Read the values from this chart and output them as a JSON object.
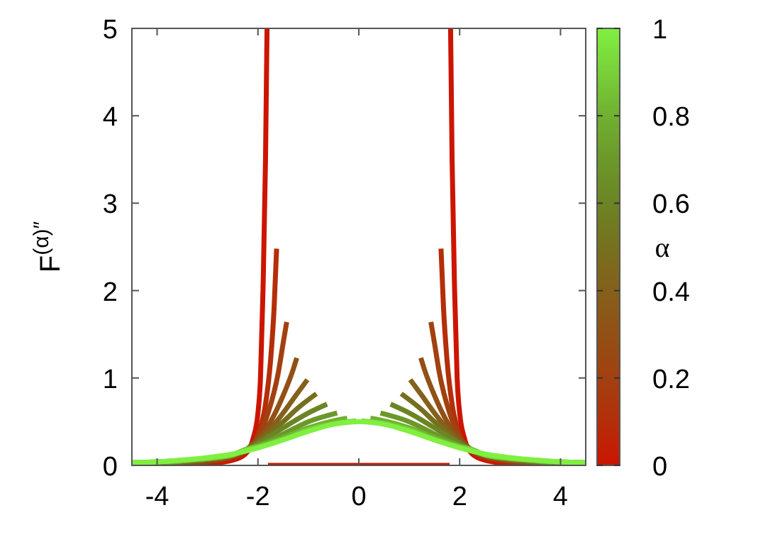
{
  "chart_data": {
    "type": "line",
    "ylabel": "F$^{(α)″}$",
    "clabel": "α",
    "xlim": [
      -4.5,
      4.5
    ],
    "ylim": [
      0,
      5
    ],
    "xticks": [
      -4,
      -2,
      0,
      2,
      4
    ],
    "yticks": [
      0,
      1,
      2,
      3,
      4,
      5
    ],
    "clim": [
      0,
      1
    ],
    "cticks": [
      0,
      0.2,
      0.4,
      0.6,
      0.8,
      1
    ],
    "grid": false,
    "line_style": "solid",
    "marker": "none",
    "series": [
      {
        "color": "#cc1500",
        "x": [
          -4.5,
          -4,
          -3.5,
          -3,
          -2.5,
          -2.25,
          -2.1,
          -2,
          -1.95,
          -1.9,
          -1.85,
          -1.82,
          -1.81,
          -1.8,
          1.8,
          1.81,
          1.82,
          1.85,
          1.9,
          1.95,
          2,
          2.1,
          2.25,
          2.5,
          3,
          3.5,
          4,
          4.5
        ],
        "values": [
          0,
          0,
          0.01,
          0.02,
          0.06,
          0.13,
          0.3,
          0.6,
          1,
          2,
          3.5,
          5,
          null,
          0,
          0,
          null,
          5,
          3.5,
          2,
          1,
          0.6,
          0.3,
          0.13,
          0.06,
          0.02,
          0.01,
          0,
          0
        ]
      },
      {
        "color": "#b42e0a",
        "x": [
          -4.5,
          -4,
          -3.5,
          -3,
          -2.5,
          -2.25,
          -2,
          -1.85,
          -1.75,
          -1.68,
          -1.63,
          0,
          1.63,
          1.68,
          1.75,
          1.85,
          2,
          2.25,
          2.5,
          3,
          3.5,
          4,
          4.5
        ],
        "values": [
          0.01,
          0.01,
          0.02,
          0.04,
          0.09,
          0.16,
          0.35,
          0.7,
          1.2,
          1.8,
          2.48,
          null,
          2.48,
          1.8,
          1.2,
          0.7,
          0.35,
          0.16,
          0.09,
          0.04,
          0.02,
          0.01,
          0.01
        ]
      },
      {
        "color": "#a24010",
        "x": [
          -4.5,
          -4,
          -3.5,
          -3,
          -2.5,
          -2.25,
          -2,
          -1.8,
          -1.6,
          -1.5,
          -1.43,
          0,
          1.43,
          1.5,
          1.6,
          1.8,
          2,
          2.25,
          2.5,
          3,
          3.5,
          4,
          4.5
        ],
        "values": [
          0.01,
          0.02,
          0.03,
          0.05,
          0.1,
          0.17,
          0.33,
          0.6,
          1.05,
          1.4,
          1.64,
          null,
          1.64,
          1.4,
          1.05,
          0.6,
          0.33,
          0.17,
          0.1,
          0.05,
          0.03,
          0.02,
          0.01
        ]
      },
      {
        "color": "#925016",
        "x": [
          -4.5,
          -4,
          -3.5,
          -3,
          -2.5,
          -2.25,
          -2,
          -1.75,
          -1.5,
          -1.3,
          -1.23,
          0,
          1.23,
          1.3,
          1.5,
          1.75,
          2,
          2.25,
          2.5,
          3,
          3.5,
          4,
          4.5
        ],
        "values": [
          0.02,
          0.02,
          0.03,
          0.06,
          0.11,
          0.17,
          0.3,
          0.5,
          0.8,
          1.1,
          1.23,
          null,
          1.23,
          1.1,
          0.8,
          0.5,
          0.3,
          0.17,
          0.11,
          0.06,
          0.03,
          0.02,
          0.02
        ]
      },
      {
        "color": "#84601a",
        "x": [
          -4.5,
          -4,
          -3.5,
          -3,
          -2.5,
          -2.25,
          -2,
          -1.75,
          -1.5,
          -1.25,
          -1.02,
          0,
          1.02,
          1.25,
          1.5,
          1.75,
          2,
          2.25,
          2.5,
          3,
          3.5,
          4,
          4.5
        ],
        "values": [
          0.02,
          0.03,
          0.04,
          0.06,
          0.11,
          0.17,
          0.28,
          0.42,
          0.6,
          0.8,
          0.98,
          null,
          0.98,
          0.8,
          0.6,
          0.42,
          0.28,
          0.17,
          0.11,
          0.06,
          0.04,
          0.03,
          0.02
        ]
      },
      {
        "color": "#76701e",
        "x": [
          -4.5,
          -4,
          -3.5,
          -3,
          -2.5,
          -2.25,
          -2,
          -1.5,
          -1.2,
          -0.84,
          0,
          0.84,
          1.2,
          1.5,
          2,
          2.25,
          2.5,
          3,
          3.5,
          4,
          4.5
        ],
        "values": [
          0.02,
          0.03,
          0.04,
          0.07,
          0.12,
          0.17,
          0.26,
          0.5,
          0.66,
          0.82,
          null,
          0.82,
          0.66,
          0.5,
          0.26,
          0.17,
          0.12,
          0.07,
          0.04,
          0.03,
          0.02
        ]
      },
      {
        "color": "#6c8424",
        "x": [
          -4.5,
          -4,
          -3.5,
          -3,
          -2.5,
          -2.25,
          -2,
          -1.5,
          -1,
          -0.63,
          0,
          0.63,
          1,
          1.5,
          2,
          2.25,
          2.5,
          3,
          3.5,
          4,
          4.5
        ],
        "values": [
          0.02,
          0.03,
          0.05,
          0.07,
          0.12,
          0.17,
          0.25,
          0.43,
          0.6,
          0.7,
          null,
          0.7,
          0.6,
          0.43,
          0.25,
          0.17,
          0.12,
          0.07,
          0.05,
          0.03,
          0.02
        ]
      },
      {
        "color": "#6c982a",
        "x": [
          -4.5,
          -4,
          -3.5,
          -3,
          -2.5,
          -2.25,
          -2,
          -1.5,
          -1,
          -0.43,
          0,
          0.43,
          1,
          1.5,
          2,
          2.25,
          2.5,
          3,
          3.5,
          4,
          4.5
        ],
        "values": [
          0.03,
          0.03,
          0.05,
          0.08,
          0.12,
          0.18,
          0.23,
          0.36,
          0.5,
          0.6,
          null,
          0.6,
          0.5,
          0.36,
          0.23,
          0.18,
          0.12,
          0.08,
          0.05,
          0.03,
          0.03
        ]
      },
      {
        "color": "#70b030",
        "x": [
          -4.5,
          -4,
          -3.5,
          -3,
          -2.5,
          -2.25,
          -2,
          -1.5,
          -1,
          -0.5,
          -0.23,
          0,
          0.23,
          0.5,
          1,
          1.5,
          2,
          2.25,
          2.5,
          3,
          3.5,
          4,
          4.5
        ],
        "values": [
          0.03,
          0.04,
          0.05,
          0.08,
          0.12,
          0.18,
          0.22,
          0.32,
          0.43,
          0.51,
          0.54,
          null,
          0.54,
          0.51,
          0.43,
          0.32,
          0.22,
          0.18,
          0.12,
          0.08,
          0.05,
          0.04,
          0.03
        ]
      },
      {
        "color": "#78d038",
        "x": [
          -4.5,
          -4,
          -3.5,
          -3,
          -2.5,
          -2.25,
          -2,
          -1.5,
          -1,
          -0.5,
          -0.05,
          0,
          0.05,
          0.5,
          1,
          1.5,
          2,
          2.25,
          2.5,
          3,
          3.5,
          4,
          4.5
        ],
        "values": [
          0.03,
          0.04,
          0.06,
          0.08,
          0.12,
          0.18,
          0.21,
          0.3,
          0.41,
          0.48,
          0.51,
          null,
          0.51,
          0.48,
          0.41,
          0.3,
          0.21,
          0.18,
          0.12,
          0.08,
          0.06,
          0.04,
          0.03
        ]
      },
      {
        "color": "#80f040",
        "x": [
          -4.5,
          -4,
          -3.5,
          -3,
          -2.5,
          -2,
          -1.5,
          -1,
          -0.5,
          0,
          0.5,
          1,
          1.5,
          2,
          2.5,
          3,
          3.5,
          4,
          4.5
        ],
        "values": [
          0.03,
          0.04,
          0.06,
          0.09,
          0.13,
          0.2,
          0.29,
          0.39,
          0.47,
          0.5,
          0.47,
          0.39,
          0.29,
          0.2,
          0.13,
          0.09,
          0.06,
          0.04,
          0.03
        ]
      }
    ]
  }
}
